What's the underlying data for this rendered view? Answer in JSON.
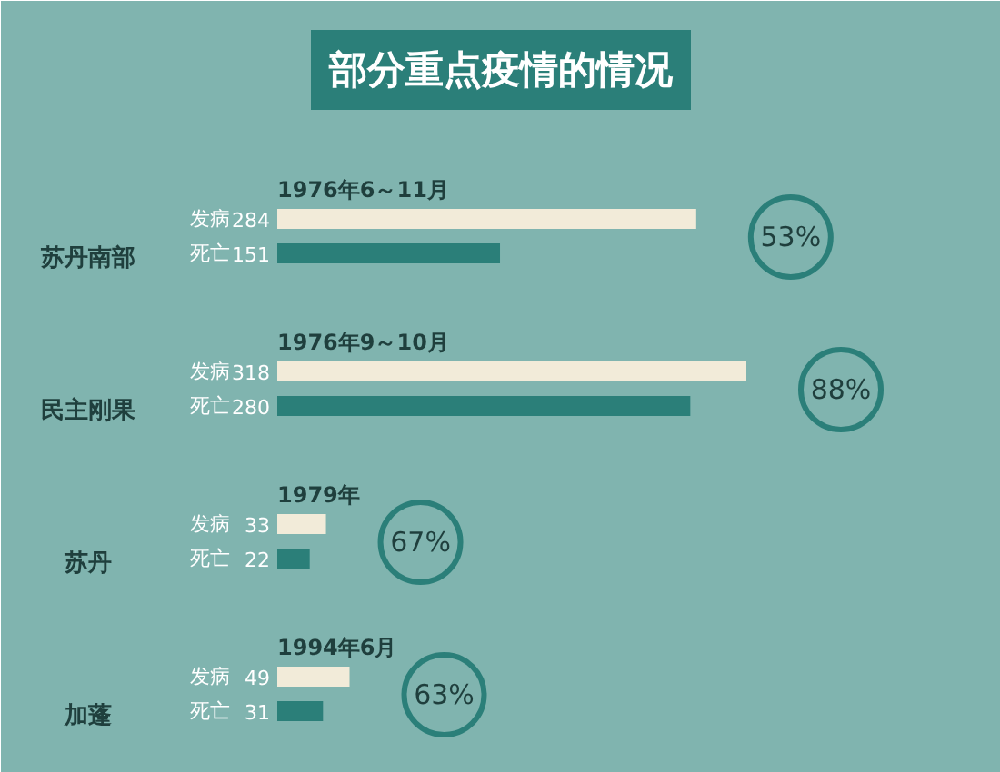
{
  "chart_data": {
    "type": "bar",
    "orientation": "horizontal",
    "title": "部分重点疫情的情况",
    "categories": [
      "苏丹南部",
      "民主刚果",
      "苏丹",
      "加蓬"
    ],
    "series": [
      {
        "name": "发病",
        "color": "#f2ebd9",
        "values": [
          284,
          318,
          33,
          49
        ]
      },
      {
        "name": "死亡",
        "color": "#2b7f79",
        "values": [
          151,
          280,
          22,
          31
        ]
      }
    ],
    "data_labels": true,
    "annotations": [
      "1976年6～11月",
      "53%",
      "1976年9～10月",
      "88%",
      "1979年",
      "67%",
      "1994年6月",
      "63%"
    ]
  }
}
